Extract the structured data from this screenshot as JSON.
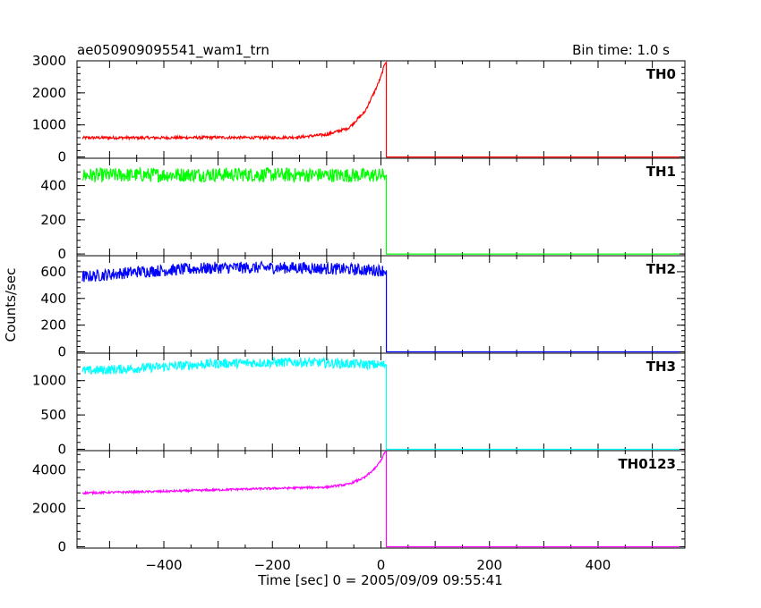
{
  "header": {
    "left_title": "ae050909095541_wam1_trn",
    "right_title": "Bin time: 1.0 s"
  },
  "chart_data": {
    "type": "line",
    "x_range": [
      -560,
      560
    ],
    "xlabel": "Time [sec] 0 = 2005/09/09 09:55:41",
    "ylabel": "Counts/sec",
    "x_ticks": [
      -400,
      -200,
      0,
      200,
      400
    ],
    "x_tick_labels": [
      "−400",
      "−200",
      "0",
      "200",
      "400"
    ],
    "cutoff_time": 10,
    "panels": [
      {
        "name": "TH0",
        "color": "#ff0000",
        "ylim": [
          -40,
          3000
        ],
        "y_ticks": [
          0,
          1000,
          2000,
          3000
        ],
        "y_tick_labels": [
          "0",
          "1000",
          "2000",
          "3000"
        ],
        "profile": [
          [
            -550,
            600
          ],
          [
            -400,
            600
          ],
          [
            -300,
            610
          ],
          [
            -200,
            600
          ],
          [
            -150,
            620
          ],
          [
            -100,
            700
          ],
          [
            -60,
            900
          ],
          [
            -30,
            1400
          ],
          [
            -10,
            2100
          ],
          [
            0,
            2500
          ],
          [
            8,
            2950
          ],
          [
            10,
            0
          ],
          [
            550,
            0
          ]
        ],
        "noise": 45
      },
      {
        "name": "TH1",
        "color": "#00ff00",
        "ylim": [
          -10,
          560
        ],
        "y_ticks": [
          0,
          200,
          400
        ],
        "y_tick_labels": [
          "0",
          "200",
          "400"
        ],
        "profile": [
          [
            -550,
            460
          ],
          [
            -300,
            465
          ],
          [
            0,
            460
          ],
          [
            8,
            460
          ],
          [
            10,
            0
          ],
          [
            550,
            0
          ]
        ],
        "noise": 42
      },
      {
        "name": "TH2",
        "color": "#0000ff",
        "ylim": [
          -10,
          720
        ],
        "y_ticks": [
          0,
          200,
          400,
          600
        ],
        "y_tick_labels": [
          "0",
          "200",
          "400",
          "600"
        ],
        "profile": [
          [
            -550,
            560
          ],
          [
            -450,
            600
          ],
          [
            -300,
            630
          ],
          [
            -150,
            630
          ],
          [
            0,
            610
          ],
          [
            8,
            610
          ],
          [
            10,
            0
          ],
          [
            550,
            0
          ]
        ],
        "noise": 45
      },
      {
        "name": "TH3",
        "color": "#00ffff",
        "ylim": [
          -20,
          1400
        ],
        "y_ticks": [
          0,
          500,
          1000
        ],
        "y_tick_labels": [
          "0",
          "500",
          "1000"
        ],
        "profile": [
          [
            -550,
            1140
          ],
          [
            -450,
            1180
          ],
          [
            -300,
            1250
          ],
          [
            -150,
            1270
          ],
          [
            0,
            1230
          ],
          [
            8,
            1230
          ],
          [
            10,
            0
          ],
          [
            550,
            0
          ]
        ],
        "noise": 70
      },
      {
        "name": "TH0123",
        "color": "#ff00ff",
        "ylim": [
          -70,
          5000
        ],
        "y_ticks": [
          0,
          2000,
          4000
        ],
        "y_tick_labels": [
          "0",
          "2000",
          "4000"
        ],
        "profile": [
          [
            -550,
            2800
          ],
          [
            -400,
            2880
          ],
          [
            -250,
            3000
          ],
          [
            -100,
            3100
          ],
          [
            -60,
            3250
          ],
          [
            -30,
            3600
          ],
          [
            -10,
            4100
          ],
          [
            0,
            4500
          ],
          [
            8,
            4950
          ],
          [
            10,
            0
          ],
          [
            550,
            0
          ]
        ],
        "noise": 55
      }
    ]
  }
}
